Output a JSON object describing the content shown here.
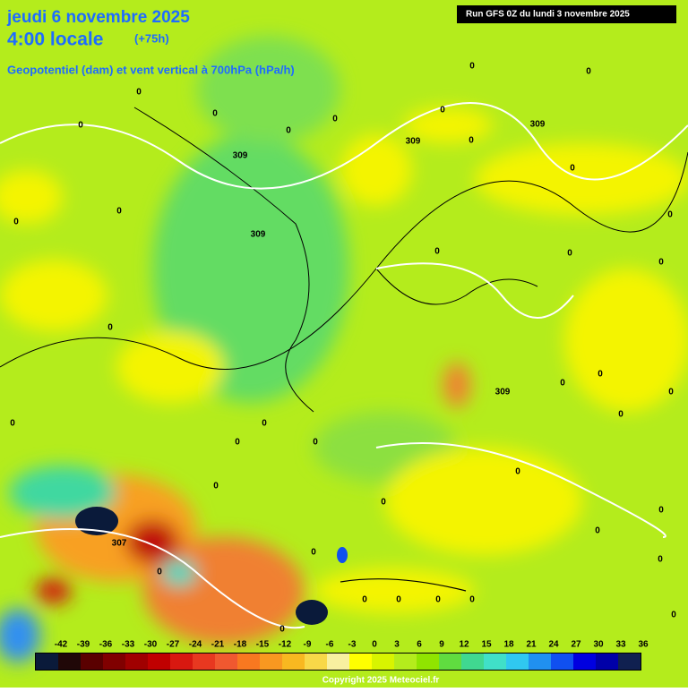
{
  "header": {
    "date": "jeudi 6 novembre 2025",
    "time": "4:00 locale",
    "lead": "(+75h)",
    "field": "Geopotentiel (dam) et vent vertical à 700hPa (hPa/h)",
    "run": "Run GFS 0Z du lundi 3 novembre 2025"
  },
  "contour_labels": [
    "0",
    "0",
    "0",
    "0",
    "0",
    "0",
    "0",
    "0",
    "0",
    "0",
    "0",
    "0",
    "0",
    "0",
    "0",
    "0",
    "0",
    "0",
    "0",
    "0",
    "0",
    "0",
    "0",
    "0",
    "0",
    "0",
    "0",
    "0",
    "0",
    "0",
    "0",
    "0",
    "0",
    "0",
    "0",
    "0",
    "0",
    "0",
    "0",
    "309",
    "309",
    "309",
    "309",
    "309",
    "307"
  ],
  "colorbar": {
    "ticks": [
      -42,
      -39,
      -36,
      -33,
      -30,
      -27,
      -24,
      -21,
      -18,
      -15,
      -12,
      -9,
      -6,
      -3,
      0,
      3,
      6,
      9,
      12,
      15,
      18,
      21,
      24,
      27,
      30,
      33,
      36
    ],
    "colors": [
      "#0a1a3a",
      "#200808",
      "#5a0000",
      "#800000",
      "#a00000",
      "#c00000",
      "#d81810",
      "#e83820",
      "#f05830",
      "#f87820",
      "#f89820",
      "#f8b820",
      "#f8d848",
      "#f8f0a0",
      "#ffff00",
      "#d8f400",
      "#b4ec1c",
      "#90e400",
      "#60dc40",
      "#40d890",
      "#40e0c8",
      "#30c8f0",
      "#2090f0",
      "#1050f0",
      "#0000e0",
      "#0000a8",
      "#102050"
    ]
  },
  "footer": {
    "copyright": "Copyright 2025 Meteociel.fr"
  }
}
